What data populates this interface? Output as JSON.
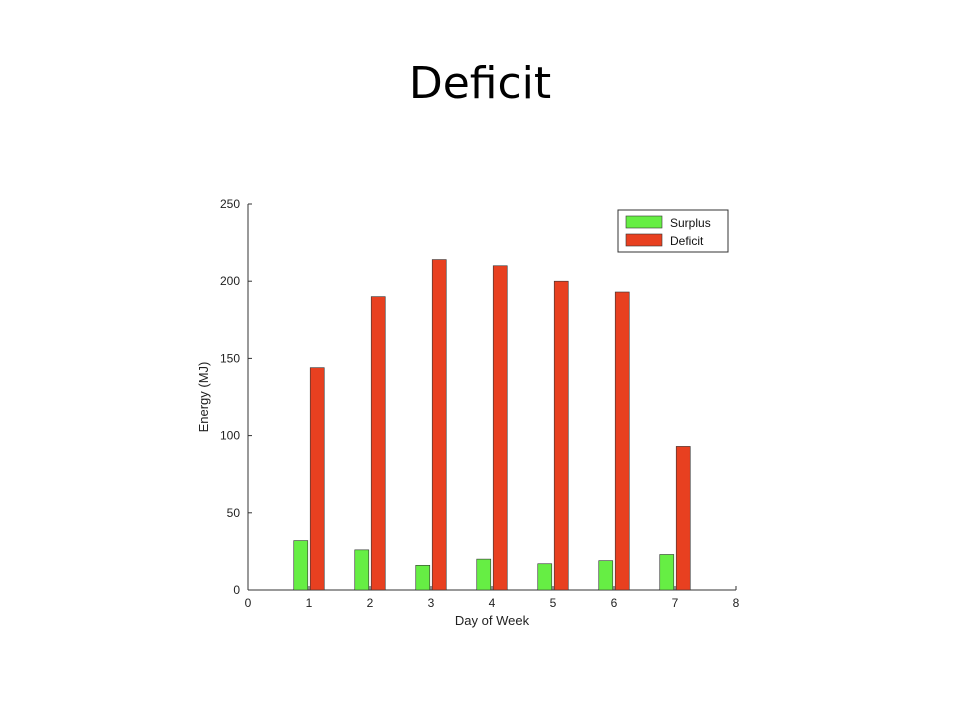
{
  "slide": {
    "title": "Deficit"
  },
  "chart_data": {
    "type": "bar",
    "title": "",
    "xlabel": "Day of Week",
    "ylabel": "Energy (MJ)",
    "xlim": [
      0,
      8
    ],
    "ylim": [
      0,
      250
    ],
    "xticks": [
      0,
      1,
      2,
      3,
      4,
      5,
      6,
      7,
      8
    ],
    "yticks": [
      0,
      50,
      100,
      150,
      200,
      250
    ],
    "categories": [
      1,
      2,
      3,
      4,
      5,
      6,
      7
    ],
    "series": [
      {
        "name": "Surplus",
        "color": "#66ee44",
        "values": [
          32,
          26,
          16,
          20,
          17,
          19,
          23
        ]
      },
      {
        "name": "Deficit",
        "color": "#e84020",
        "values": [
          144,
          190,
          214,
          210,
          200,
          193,
          93
        ]
      }
    ],
    "legend": {
      "position": "top-right"
    },
    "grid": false
  }
}
